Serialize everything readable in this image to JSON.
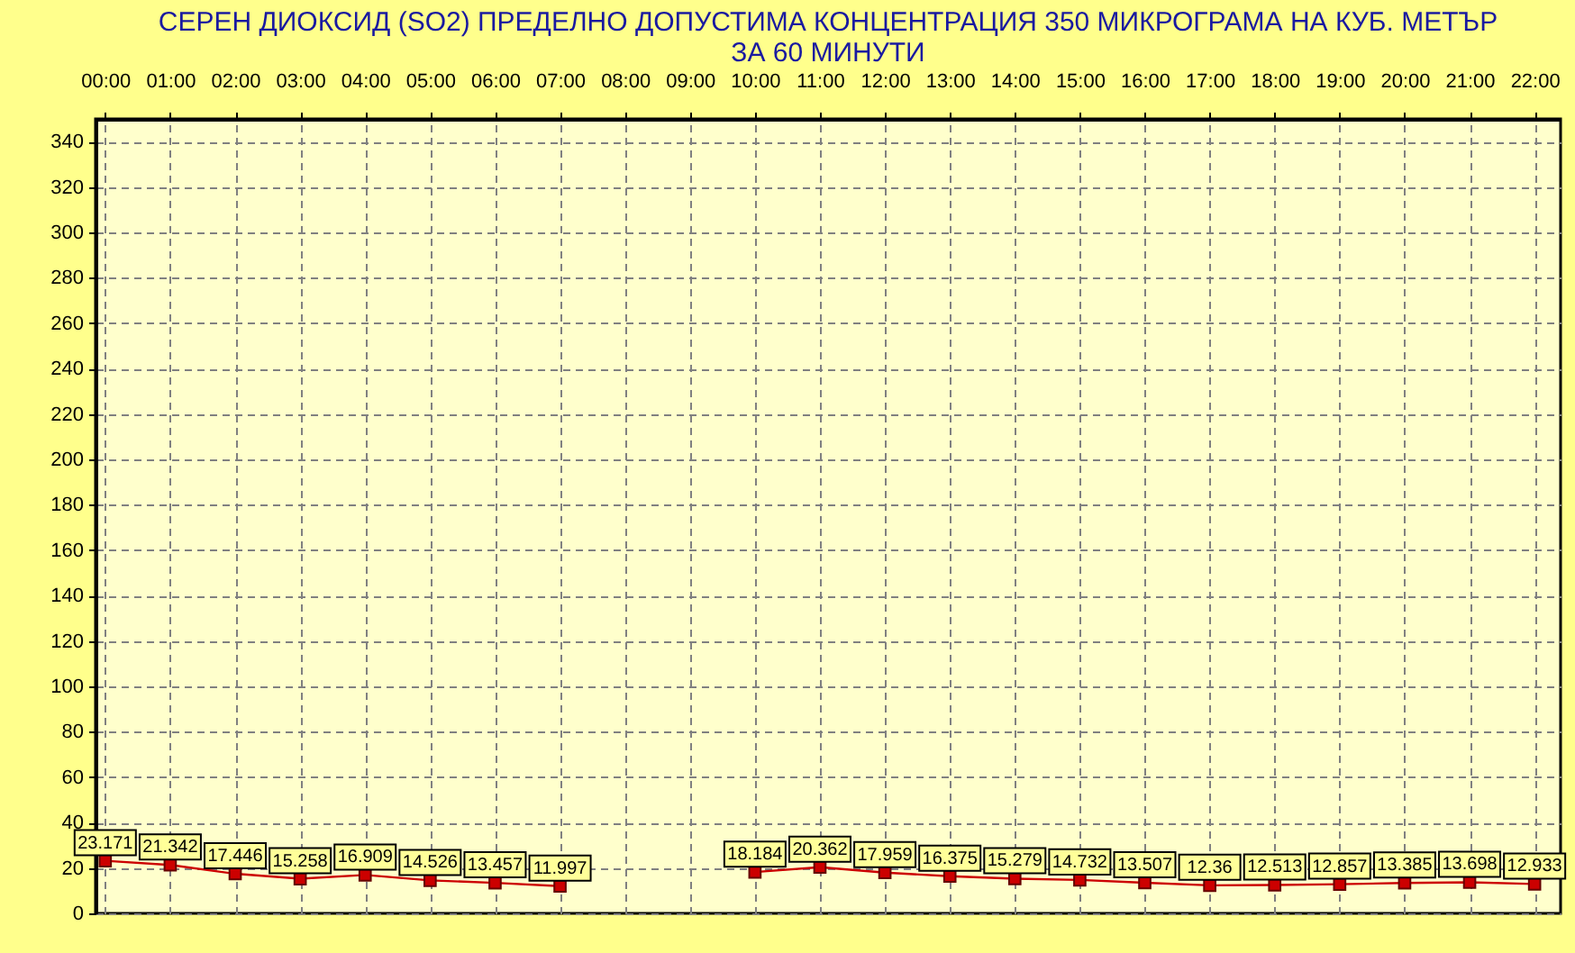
{
  "chart_data": {
    "type": "line",
    "title": "СЕРЕН ДИОКСИД (SO2) ПРЕДЕЛНО ДОПУСТИМА КОНЦЕНТРАЦИЯ 350 МИКРОГРАМА НА КУБ. МЕТЪР\nЗА 60 МИНУТИ",
    "x": [
      0,
      1,
      2,
      3,
      4,
      5,
      6,
      7,
      8,
      9,
      10,
      11,
      12,
      13,
      14,
      15,
      16,
      17,
      18,
      19,
      20,
      21,
      22
    ],
    "series": [
      {
        "color": "#cc0000",
        "values": [
          23.171,
          21.342,
          17.446,
          15.258,
          16.909,
          14.526,
          13.457,
          11.997,
          null,
          null,
          18.184,
          20.362,
          17.959,
          16.375,
          15.279,
          14.732,
          13.507,
          12.36,
          12.513,
          12.857,
          13.385,
          13.698,
          12.933
        ]
      }
    ],
    "xlim": [
      -0.15,
      22.4
    ],
    "xticks": [
      {
        "value": 0,
        "label": "00:00"
      },
      {
        "value": 1,
        "label": "01:00"
      },
      {
        "value": 2,
        "label": "02:00"
      },
      {
        "value": 3,
        "label": "03:00"
      },
      {
        "value": 4,
        "label": "04:00"
      },
      {
        "value": 5,
        "label": "05:00"
      },
      {
        "value": 6,
        "label": "06:00"
      },
      {
        "value": 7,
        "label": "07:00"
      },
      {
        "value": 8,
        "label": "08:00"
      },
      {
        "value": 9,
        "label": "09:00"
      },
      {
        "value": 10,
        "label": "10:00"
      },
      {
        "value": 11,
        "label": "11:00"
      },
      {
        "value": 12,
        "label": "12:00"
      },
      {
        "value": 13,
        "label": "13:00"
      },
      {
        "value": 14,
        "label": "14:00"
      },
      {
        "value": 15,
        "label": "15:00"
      },
      {
        "value": 16,
        "label": "16:00"
      },
      {
        "value": 17,
        "label": "17:00"
      },
      {
        "value": 18,
        "label": "18:00"
      },
      {
        "value": 19,
        "label": "19:00"
      },
      {
        "value": 20,
        "label": "20:00"
      },
      {
        "value": 21,
        "label": "21:00"
      },
      {
        "value": 22,
        "label": "22:00"
      }
    ],
    "ylim": [
      0,
      350
    ],
    "yticks": [
      0,
      20,
      40,
      60,
      80,
      100,
      120,
      140,
      160,
      180,
      200,
      220,
      240,
      260,
      280,
      300,
      320,
      340
    ],
    "grid": true,
    "marker": "square",
    "line_style": "solid",
    "data_labels": true
  }
}
